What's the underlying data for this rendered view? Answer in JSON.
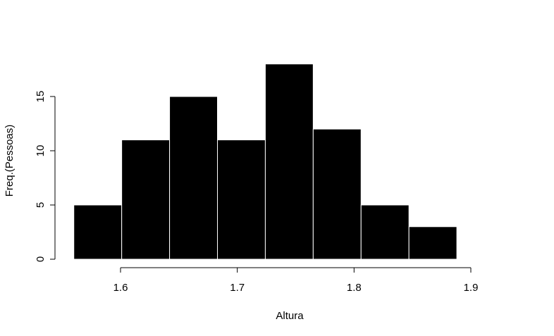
{
  "chart_data": {
    "type": "bar",
    "subtype": "histogram",
    "bins": [
      {
        "x0": 1.56,
        "x1": 1.601,
        "count": 5
      },
      {
        "x0": 1.601,
        "x1": 1.642,
        "count": 11
      },
      {
        "x0": 1.642,
        "x1": 1.683,
        "count": 15
      },
      {
        "x0": 1.683,
        "x1": 1.724,
        "count": 11
      },
      {
        "x0": 1.724,
        "x1": 1.765,
        "count": 18
      },
      {
        "x0": 1.765,
        "x1": 1.806,
        "count": 12
      },
      {
        "x0": 1.806,
        "x1": 1.847,
        "count": 5
      },
      {
        "x0": 1.847,
        "x1": 1.888,
        "count": 3
      }
    ],
    "values": [
      5,
      11,
      15,
      11,
      18,
      12,
      5,
      3
    ],
    "xlabel": "Altura",
    "ylabel": "Freq.(Pessoas)",
    "xticks": [
      1.6,
      1.7,
      1.8,
      1.9
    ],
    "xtick_labels": [
      "1.6",
      "1.7",
      "1.8",
      "1.9"
    ],
    "yticks": [
      0,
      5,
      10,
      15
    ],
    "ytick_labels": [
      "0",
      "5",
      "10",
      "15"
    ],
    "ylim": [
      0,
      18
    ],
    "grid": false,
    "bar_color": "#000000",
    "bar_border_color": "#ffffff"
  }
}
